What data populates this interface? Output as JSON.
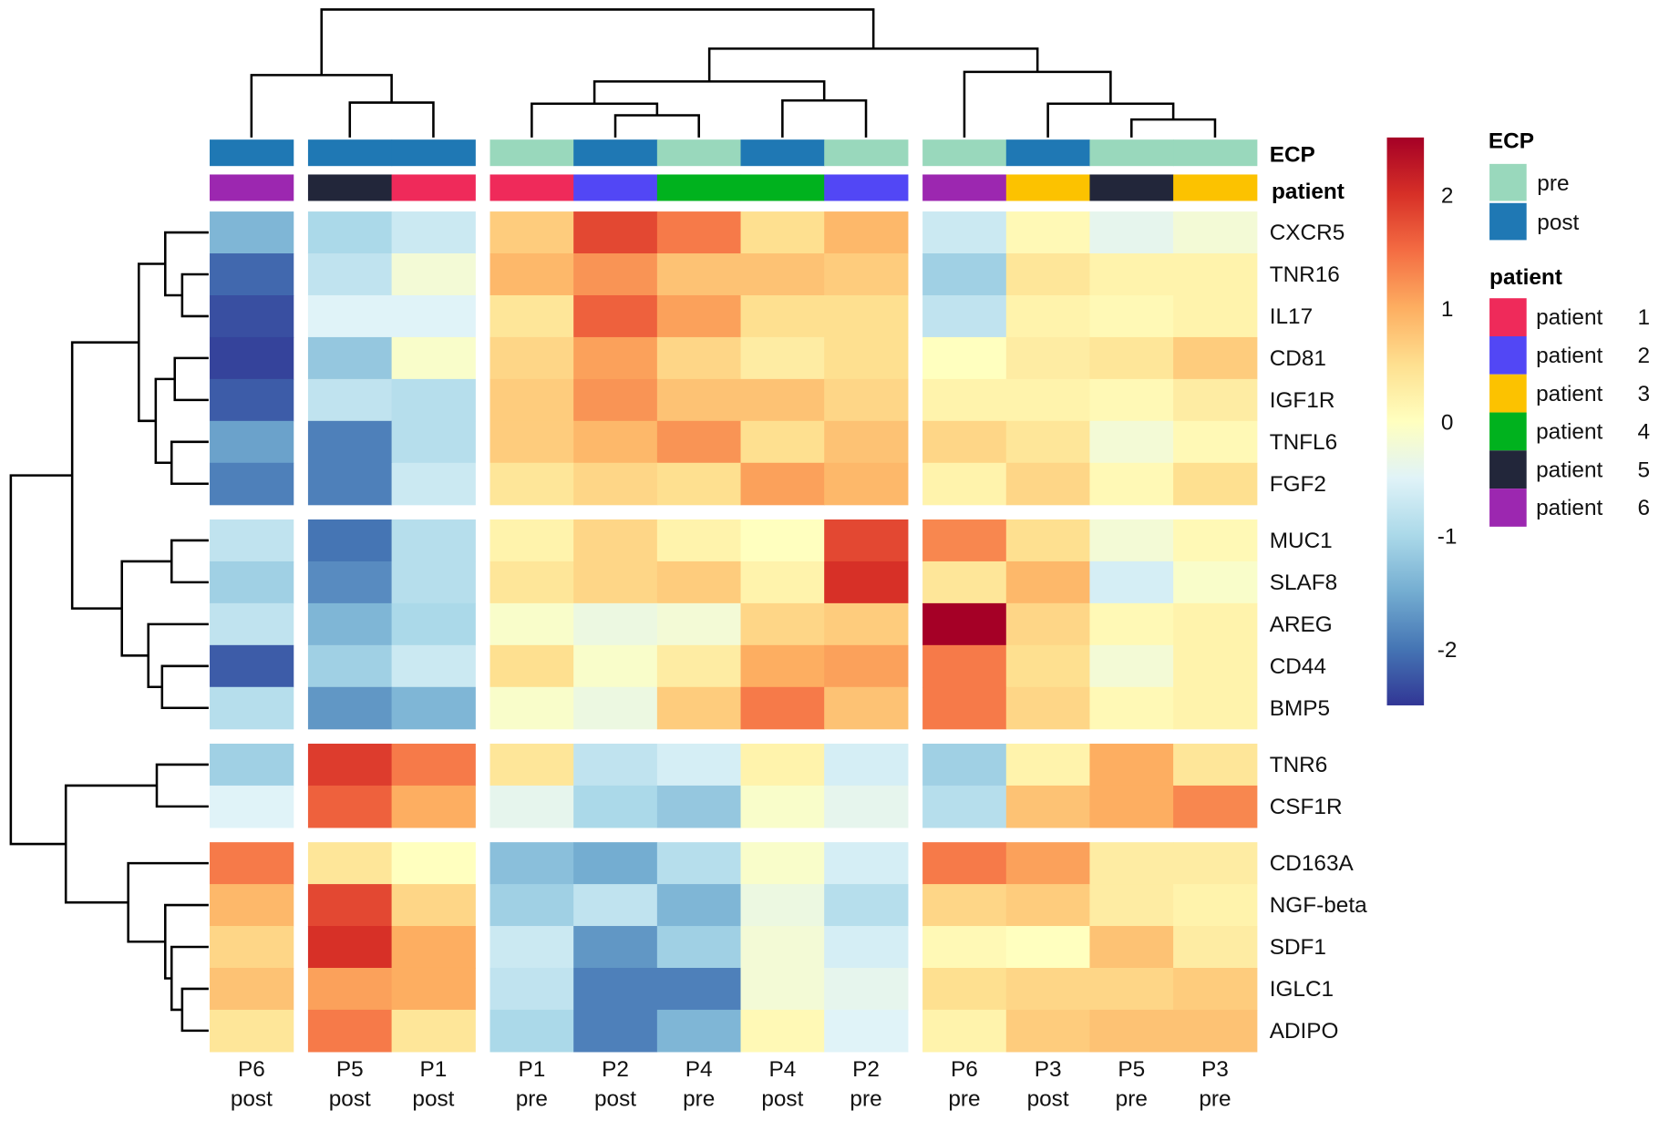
{
  "chart_data": {
    "type": "heatmap",
    "title": "",
    "rows": [
      "CXCR5",
      "TNR16",
      "IL17",
      "CD81",
      "IGF1R",
      "TNFL6",
      "FGF2",
      "MUC1",
      "SLAF8",
      "AREG",
      "CD44",
      "BMP5",
      "TNR6",
      "CSF1R",
      "CD163A",
      "NGF-beta",
      "SDF1",
      "IGLC1",
      "ADIPO"
    ],
    "columns": [
      {
        "id": "P6",
        "ecp": "post",
        "patient": "6"
      },
      {
        "id": "P5",
        "ecp": "post",
        "patient": "5"
      },
      {
        "id": "P1",
        "ecp": "post",
        "patient": "1"
      },
      {
        "id": "P1",
        "ecp": "pre",
        "patient": "1"
      },
      {
        "id": "P2",
        "ecp": "post",
        "patient": "2"
      },
      {
        "id": "P4",
        "ecp": "pre",
        "patient": "4"
      },
      {
        "id": "P4",
        "ecp": "post",
        "patient": "4"
      },
      {
        "id": "P2",
        "ecp": "pre",
        "patient": "2"
      },
      {
        "id": "P6",
        "ecp": "pre",
        "patient": "6"
      },
      {
        "id": "P3",
        "ecp": "post",
        "patient": "3"
      },
      {
        "id": "P5",
        "ecp": "pre",
        "patient": "5"
      },
      {
        "id": "P3",
        "ecp": "pre",
        "patient": "3"
      }
    ],
    "values": [
      [
        -1.4,
        -1.0,
        -0.7,
        0.7,
        1.8,
        1.4,
        0.5,
        0.9,
        -0.7,
        0.1,
        -0.4,
        -0.2
      ],
      [
        -2.1,
        -0.8,
        -0.2,
        0.9,
        1.2,
        0.8,
        0.8,
        0.7,
        -1.1,
        0.4,
        0.2,
        0.2
      ],
      [
        -2.3,
        -0.5,
        -0.5,
        0.4,
        1.6,
        1.1,
        0.5,
        0.5,
        -0.8,
        0.2,
        0.1,
        0.2
      ],
      [
        -2.4,
        -1.2,
        -0.1,
        0.6,
        1.1,
        0.6,
        0.3,
        0.5,
        0.0,
        0.3,
        0.4,
        0.7
      ],
      [
        -2.2,
        -0.8,
        -0.9,
        0.7,
        1.2,
        0.8,
        0.8,
        0.6,
        0.2,
        0.2,
        0.1,
        0.3
      ],
      [
        -1.6,
        -1.9,
        -0.9,
        0.7,
        0.9,
        1.2,
        0.5,
        0.8,
        0.6,
        0.4,
        -0.2,
        0.1
      ],
      [
        -1.9,
        -1.9,
        -0.7,
        0.4,
        0.6,
        0.5,
        1.1,
        0.9,
        0.2,
        0.6,
        0.1,
        0.5
      ],
      [
        -0.8,
        -2.0,
        -0.9,
        0.2,
        0.6,
        0.2,
        0.0,
        1.8,
        1.3,
        0.5,
        -0.2,
        0.1
      ],
      [
        -1.1,
        -1.8,
        -0.9,
        0.4,
        0.6,
        0.7,
        0.2,
        2.0,
        0.4,
        0.9,
        -0.6,
        -0.1
      ],
      [
        -0.8,
        -1.4,
        -1.0,
        -0.1,
        -0.3,
        -0.2,
        0.6,
        0.7,
        2.5,
        0.6,
        0.1,
        0.2
      ],
      [
        -2.2,
        -1.1,
        -0.7,
        0.5,
        -0.1,
        0.3,
        1.0,
        1.1,
        1.4,
        0.5,
        -0.2,
        0.2
      ],
      [
        -0.9,
        -1.7,
        -1.4,
        -0.1,
        -0.3,
        0.7,
        1.4,
        0.8,
        1.4,
        0.6,
        0.1,
        0.2
      ],
      [
        -1.1,
        1.9,
        1.4,
        0.4,
        -0.8,
        -0.6,
        0.2,
        -0.6,
        -1.1,
        0.2,
        1.0,
        0.4
      ],
      [
        -0.5,
        1.6,
        1.0,
        -0.4,
        -1.0,
        -1.2,
        -0.1,
        -0.4,
        -0.9,
        0.8,
        1.0,
        1.3
      ],
      [
        1.4,
        0.4,
        0.0,
        -1.3,
        -1.5,
        -0.9,
        -0.1,
        -0.6,
        1.4,
        1.1,
        0.3,
        0.3
      ],
      [
        0.9,
        1.8,
        0.6,
        -1.1,
        -0.8,
        -1.4,
        -0.3,
        -0.9,
        0.6,
        0.7,
        0.3,
        0.2
      ],
      [
        0.6,
        2.0,
        1.0,
        -0.7,
        -1.7,
        -1.1,
        -0.2,
        -0.6,
        0.1,
        0.0,
        0.8,
        0.3
      ],
      [
        0.8,
        1.1,
        1.0,
        -0.8,
        -1.9,
        -1.9,
        -0.2,
        -0.4,
        0.5,
        0.6,
        0.6,
        0.7
      ],
      [
        0.4,
        1.4,
        0.4,
        -1.0,
        -1.9,
        -1.4,
        0.1,
        -0.5,
        0.2,
        0.7,
        0.8,
        0.8
      ]
    ],
    "col_gaps_after": [
      0,
      2,
      7
    ],
    "row_gaps_after": [
      6,
      11,
      13
    ],
    "col_dendrogram": [
      [
        1,
        2,
        33
      ],
      [
        0,
        "m0",
        59
      ],
      [
        4,
        5,
        21
      ],
      [
        3,
        "m2",
        32
      ],
      [
        6,
        7,
        35
      ],
      [
        "m3",
        "m4",
        53
      ],
      [
        10,
        11,
        17
      ],
      [
        9,
        "m6",
        32
      ],
      [
        8,
        "m7",
        62
      ],
      [
        "m5",
        "m8",
        84
      ],
      [
        "m1",
        "m9",
        121
      ]
    ],
    "row_dendrogram": [
      [
        1,
        2,
        25
      ],
      [
        0,
        "m0",
        41
      ],
      [
        3,
        4,
        32
      ],
      [
        5,
        6,
        35
      ],
      [
        "m2",
        "m3",
        50
      ],
      [
        "m1",
        "m4",
        66
      ],
      [
        7,
        8,
        35
      ],
      [
        10,
        11,
        44
      ],
      [
        9,
        "m7",
        57
      ],
      [
        "m6",
        "m8",
        82
      ],
      [
        "m5",
        "m9",
        129
      ],
      [
        12,
        13,
        49
      ],
      [
        17,
        18,
        25
      ],
      [
        16,
        "m12",
        35
      ],
      [
        15,
        "m13",
        41
      ],
      [
        14,
        "m14",
        76
      ],
      [
        "m11",
        "m15",
        135
      ],
      [
        "m10",
        "m16",
        187
      ]
    ],
    "annotation_labels": {
      "ecp": "ECP",
      "patient": "patient"
    },
    "color_scale": {
      "range": [
        -2.5,
        2.5
      ],
      "colors": [
        "#313695",
        "#4575b4",
        "#74add1",
        "#abd9e9",
        "#e0f3f8",
        "#ffffbf",
        "#fee090",
        "#fdae61",
        "#f46d43",
        "#d73027",
        "#a50026"
      ],
      "ticks": [
        "2",
        "1",
        "0",
        "-1",
        "-2"
      ],
      "tick_values": [
        2,
        1,
        0,
        -1,
        -2
      ]
    },
    "legend": {
      "ecp_title": "ECP",
      "ecp": [
        {
          "label": "pre",
          "color": "#99d8bc"
        },
        {
          "label": "post",
          "color": "#1f78b4"
        }
      ],
      "patient_title": "patient",
      "patient": [
        {
          "label": "patient",
          "num": "1",
          "color": "#ef2a5a"
        },
        {
          "label": "patient",
          "num": "2",
          "color": "#5247f5"
        },
        {
          "label": "patient",
          "num": "3",
          "color": "#fcc200"
        },
        {
          "label": "patient",
          "num": "4",
          "color": "#00b21e"
        },
        {
          "label": "patient",
          "num": "5",
          "color": "#22263a"
        },
        {
          "label": "patient",
          "num": "6",
          "color": "#9c27b0"
        }
      ]
    }
  }
}
